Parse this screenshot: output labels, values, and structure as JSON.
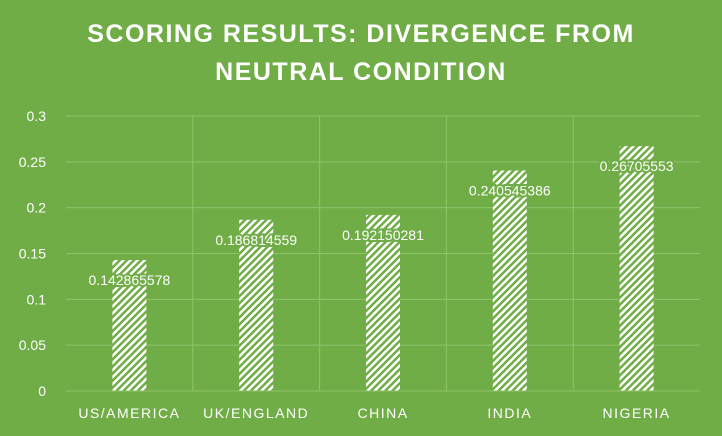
{
  "title_lines": [
    "SCORING RESULTS: DIVERGENCE FROM",
    "NEUTRAL CONDITION"
  ],
  "chart_data": {
    "type": "bar",
    "title": "SCORING RESULTS: DIVERGENCE FROM NEUTRAL CONDITION",
    "categories": [
      "US/AMERICA",
      "UK/ENGLAND",
      "CHINA",
      "INDIA",
      "NIGERIA"
    ],
    "values": [
      0.142865578,
      0.186814559,
      0.192150281,
      0.240545386,
      0.26705553
    ],
    "data_labels": [
      "0.142865578",
      "0.186814559",
      "0.192150281",
      "0.240545386",
      "0.26705553"
    ],
    "y_ticks": [
      "0",
      "0.05",
      "0.1",
      "0.15",
      "0.2",
      "0.25",
      "0.3"
    ],
    "ylim": [
      0,
      0.3
    ],
    "xlabel": "",
    "ylabel": "",
    "grid": true,
    "legend": "none",
    "bar_pattern": "diagonal-stripes",
    "colors": {
      "background": "#70ad47",
      "bar": "#ffffff",
      "grid": "#8fc46a",
      "text": "#ffffff"
    }
  }
}
